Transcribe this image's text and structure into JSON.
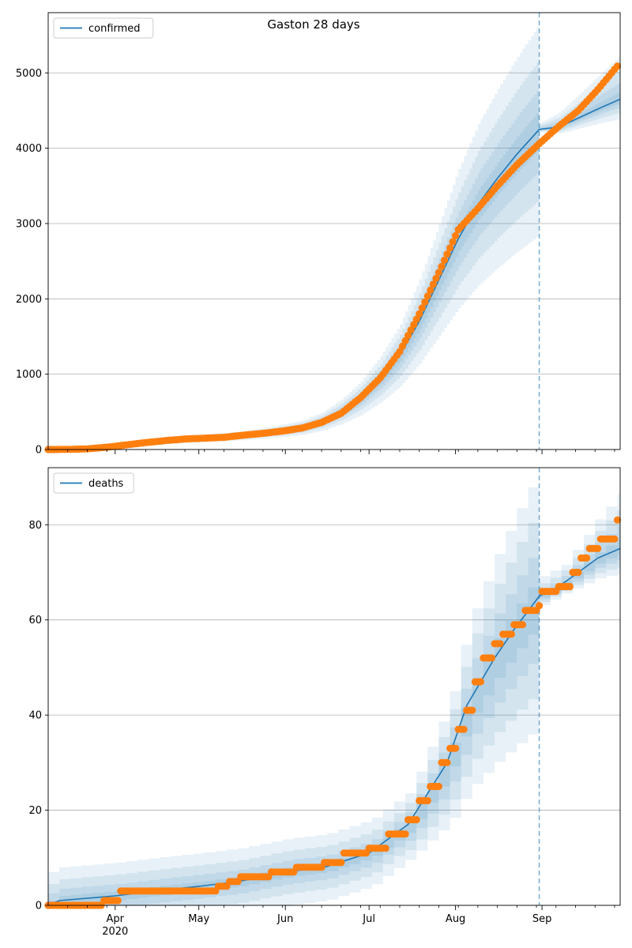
{
  "chart_data": [
    {
      "type": "line",
      "title": "Gaston 28 days",
      "xlabel": "",
      "ylabel": "",
      "x_tick_labels": [
        "Apr",
        "May",
        "Jun",
        "Jul",
        "Aug",
        "Sep"
      ],
      "x_year_label": "2020",
      "x_range": [
        "2020-03-08",
        "2020-09-29"
      ],
      "forecast_start": "2020-08-31",
      "ylim": [
        0,
        5800
      ],
      "y_ticks": [
        0,
        1000,
        2000,
        3000,
        4000,
        5000
      ],
      "grid": "horizontal",
      "legend_position": "top-left",
      "series": [
        {
          "name": "confirmed",
          "kind": "model-median",
          "color": "#1f77b4",
          "points": [
            [
              "2020-03-08",
              0
            ],
            [
              "2020-03-15",
              2
            ],
            [
              "2020-03-22",
              10
            ],
            [
              "2020-03-29",
              35
            ],
            [
              "2020-04-05",
              65
            ],
            [
              "2020-04-12",
              90
            ],
            [
              "2020-04-19",
              115
            ],
            [
              "2020-04-26",
              135
            ],
            [
              "2020-05-03",
              150
            ],
            [
              "2020-05-10",
              165
            ],
            [
              "2020-05-17",
              185
            ],
            [
              "2020-05-24",
              215
            ],
            [
              "2020-05-31",
              250
            ],
            [
              "2020-06-07",
              290
            ],
            [
              "2020-06-14",
              370
            ],
            [
              "2020-06-21",
              500
            ],
            [
              "2020-06-28",
              680
            ],
            [
              "2020-07-05",
              930
            ],
            [
              "2020-07-12",
              1250
            ],
            [
              "2020-07-19",
              1700
            ],
            [
              "2020-07-26",
              2250
            ],
            [
              "2020-08-02",
              2800
            ],
            [
              "2020-08-09",
              3250
            ],
            [
              "2020-08-16",
              3600
            ],
            [
              "2020-08-23",
              3920
            ],
            [
              "2020-08-31",
              4250
            ],
            [
              "2020-09-07",
              4280
            ],
            [
              "2020-09-14",
              4400
            ],
            [
              "2020-09-21",
              4520
            ],
            [
              "2020-09-29",
              4650
            ]
          ]
        },
        {
          "name": "",
          "kind": "observed",
          "color": "#ff7f0e",
          "points": [
            [
              "2020-03-08",
              0
            ],
            [
              "2020-03-15",
              1
            ],
            [
              "2020-03-22",
              8
            ],
            [
              "2020-03-29",
              30
            ],
            [
              "2020-04-05",
              62
            ],
            [
              "2020-04-12",
              92
            ],
            [
              "2020-04-19",
              118
            ],
            [
              "2020-04-26",
              140
            ],
            [
              "2020-05-03",
              150
            ],
            [
              "2020-05-10",
              162
            ],
            [
              "2020-05-17",
              190
            ],
            [
              "2020-05-24",
              215
            ],
            [
              "2020-05-31",
              245
            ],
            [
              "2020-06-07",
              285
            ],
            [
              "2020-06-14",
              360
            ],
            [
              "2020-06-21",
              480
            ],
            [
              "2020-06-28",
              690
            ],
            [
              "2020-07-05",
              950
            ],
            [
              "2020-07-12",
              1300
            ],
            [
              "2020-07-19",
              1800
            ],
            [
              "2020-07-26",
              2350
            ],
            [
              "2020-08-02",
              2920
            ],
            [
              "2020-08-09",
              3200
            ],
            [
              "2020-08-16",
              3500
            ],
            [
              "2020-08-23",
              3780
            ],
            [
              "2020-08-31",
              4060
            ],
            [
              "2020-09-07",
              4290
            ],
            [
              "2020-09-14",
              4500
            ],
            [
              "2020-09-21",
              4780
            ],
            [
              "2020-09-28",
              5090
            ]
          ]
        }
      ]
    },
    {
      "type": "line",
      "title": "",
      "xlabel": "",
      "ylabel": "",
      "x_tick_labels": [
        "Apr",
        "May",
        "Jun",
        "Jul",
        "Aug",
        "Sep"
      ],
      "x_year_label": "2020",
      "x_range": [
        "2020-03-08",
        "2020-09-29"
      ],
      "forecast_start": "2020-08-31",
      "ylim": [
        0,
        92
      ],
      "y_ticks": [
        0,
        20,
        40,
        60,
        80
      ],
      "grid": "horizontal",
      "legend_position": "top-left",
      "series": [
        {
          "name": "deaths",
          "kind": "model-median",
          "color": "#1f77b4",
          "points": [
            [
              "2020-03-08",
              0
            ],
            [
              "2020-03-12",
              1
            ],
            [
              "2020-04-01",
              2
            ],
            [
              "2020-04-15",
              3
            ],
            [
              "2020-05-01",
              4
            ],
            [
              "2020-05-15",
              5
            ],
            [
              "2020-06-01",
              7
            ],
            [
              "2020-06-15",
              8
            ],
            [
              "2020-07-01",
              11
            ],
            [
              "2020-07-15",
              17
            ],
            [
              "2020-07-29",
              30
            ],
            [
              "2020-08-05",
              42
            ],
            [
              "2020-08-15",
              52
            ],
            [
              "2020-08-22",
              58
            ],
            [
              "2020-08-31",
              65
            ],
            [
              "2020-09-07",
              67
            ],
            [
              "2020-09-14",
              70
            ],
            [
              "2020-09-21",
              73
            ],
            [
              "2020-09-29",
              75
            ]
          ]
        },
        {
          "name": "",
          "kind": "observed",
          "color": "#ff7f0e",
          "points": [
            [
              "2020-03-08",
              0
            ],
            [
              "2020-03-25",
              0
            ],
            [
              "2020-03-28",
              1
            ],
            [
              "2020-04-01",
              1
            ],
            [
              "2020-04-03",
              3
            ],
            [
              "2020-05-05",
              3
            ],
            [
              "2020-05-08",
              4
            ],
            [
              "2020-05-12",
              5
            ],
            [
              "2020-05-16",
              6
            ],
            [
              "2020-05-27",
              7
            ],
            [
              "2020-06-05",
              8
            ],
            [
              "2020-06-15",
              9
            ],
            [
              "2020-06-22",
              11
            ],
            [
              "2020-07-01",
              12
            ],
            [
              "2020-07-08",
              15
            ],
            [
              "2020-07-15",
              18
            ],
            [
              "2020-07-19",
              22
            ],
            [
              "2020-07-23",
              25
            ],
            [
              "2020-07-27",
              30
            ],
            [
              "2020-07-30",
              33
            ],
            [
              "2020-08-02",
              37
            ],
            [
              "2020-08-05",
              41
            ],
            [
              "2020-08-08",
              47
            ],
            [
              "2020-08-11",
              52
            ],
            [
              "2020-08-15",
              55
            ],
            [
              "2020-08-18",
              57
            ],
            [
              "2020-08-22",
              59
            ],
            [
              "2020-08-26",
              62
            ],
            [
              "2020-08-31",
              63
            ],
            [
              "2020-09-01",
              66
            ],
            [
              "2020-09-07",
              67
            ],
            [
              "2020-09-12",
              70
            ],
            [
              "2020-09-15",
              73
            ],
            [
              "2020-09-18",
              75
            ],
            [
              "2020-09-22",
              77
            ],
            [
              "2020-09-28",
              81
            ]
          ]
        }
      ]
    }
  ]
}
